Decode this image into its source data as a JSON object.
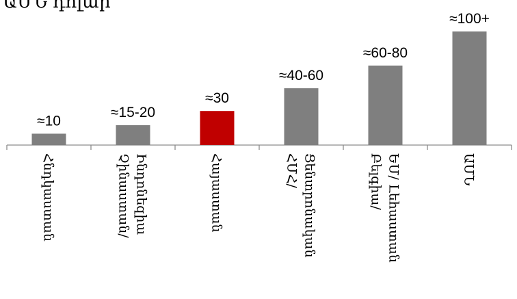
{
  "chart_data": {
    "type": "bar",
    "title": "ԱՄՆ դոլար",
    "categories": [
      "Հնդկաստան",
      "Չինաստան/ Ինդոնեզիա",
      "Հայաստան",
      "ՀՄՀ/ Ցենտրոնական",
      "Բելգիա/ ԵՄ/ Լեհաստան",
      "ԱՄՆ"
    ],
    "values": [
      10,
      17.5,
      30,
      50,
      70,
      100
    ],
    "data_labels": [
      "≈10",
      "≈15-20",
      "≈30",
      "≈40-60",
      "≈60-80",
      "≈100+"
    ],
    "highlight_index": 2,
    "colors": {
      "default": "#7f7f7f",
      "highlight": "#c00000"
    },
    "ylim": [
      0,
      100
    ],
    "grid": false,
    "legend": "none"
  }
}
